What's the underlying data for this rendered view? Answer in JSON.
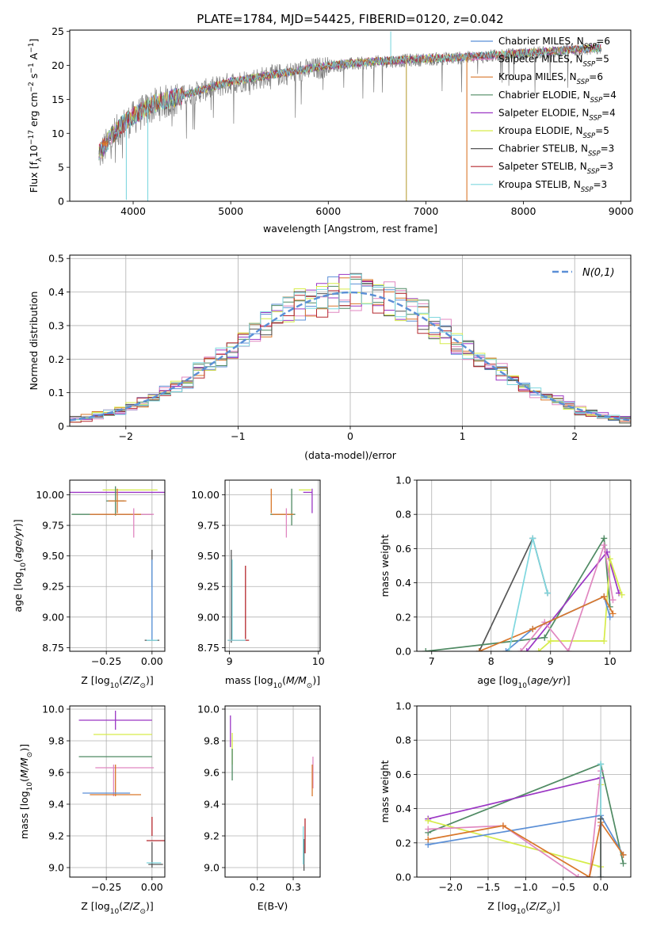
{
  "figure_title": "PLATE=1784, MJD=54425, FIBERID=0120, z=0.042",
  "colors": {
    "chabrier_miles": "#5b8fd6",
    "salpeter_miles": "#e087c0",
    "kroupa_miles": "#d9772b",
    "chabrier_elodie": "#4f8a63",
    "salpeter_elodie": "#9b36c4",
    "kroupa_elodie": "#d6ec4a",
    "chabrier_stelib": "#555555",
    "salpeter_stelib": "#b5282e",
    "kroupa_stelib": "#7fd7df",
    "gauss": "#5b8fd6",
    "data": "#808080"
  },
  "chart_data": [
    {
      "id": "spectrum",
      "type": "line",
      "title": "PLATE=1784, MJD=54425, FIBERID=0120, z=0.042",
      "xlabel": "wavelength [Angstrom, rest frame]",
      "ylabel": "Flux [f_λ 10^-17 erg cm^-2 s^-1 A^-1]",
      "xlim": [
        3350,
        9100
      ],
      "ylim": [
        0,
        25.2
      ],
      "xticks": [
        4000,
        5000,
        6000,
        7000,
        8000,
        9000
      ],
      "yticks": [
        0,
        5,
        10,
        15,
        20,
        25
      ],
      "legend_placement": "top-right",
      "grid": false,
      "continuum": {
        "x": [
          3650,
          3700,
          3800,
          3900,
          4000,
          4200,
          4500,
          5000,
          5500,
          6000,
          6500,
          7000,
          7500,
          8000,
          8500,
          8800
        ],
        "y": [
          7.0,
          8.0,
          10.0,
          11.5,
          12.5,
          14.3,
          15.6,
          17.6,
          18.8,
          20.0,
          20.6,
          21.0,
          21.3,
          21.8,
          22.3,
          22.6
        ]
      },
      "spikes": [
        {
          "x": 3930,
          "y": 0.2
        },
        {
          "x": 4150,
          "y": 0.0
        },
        {
          "x": 6640,
          "y": 25.0
        },
        {
          "x": 6800,
          "y": 0.0
        },
        {
          "x": 7420,
          "y": 0.0
        }
      ],
      "series": [
        {
          "name": "Chabrier MILES, N_SSP=6",
          "label": "Chabrier MILES, N",
          "sub": "SSP",
          "n": "=6",
          "color_key": "chabrier_miles"
        },
        {
          "name": "Salpeter MILES, N_SSP=5",
          "label": "Salpeter MILES, N",
          "sub": "SSP",
          "n": "=5",
          "color_key": "salpeter_miles"
        },
        {
          "name": "Kroupa MILES, N_SSP=6",
          "label": "Kroupa MILES, N",
          "sub": "SSP",
          "n": "=6",
          "color_key": "kroupa_miles"
        },
        {
          "name": "Chabrier ELODIE, N_SSP=4",
          "label": "Chabrier ELODIE, N",
          "sub": "SSP",
          "n": "=4",
          "color_key": "chabrier_elodie"
        },
        {
          "name": "Salpeter ELODIE, N_SSP=4",
          "label": "Salpeter ELODIE, N",
          "sub": "SSP",
          "n": "=4",
          "color_key": "salpeter_elodie"
        },
        {
          "name": "Kroupa ELODIE, N_SSP=5",
          "label": "Kroupa ELODIE, N",
          "sub": "SSP",
          "n": "=5",
          "color_key": "kroupa_elodie"
        },
        {
          "name": "Chabrier STELIB, N_SSP=3",
          "label": "Chabrier STELIB, N",
          "sub": "SSP",
          "n": "=3",
          "color_key": "chabrier_stelib"
        },
        {
          "name": "Salpeter STELIB, N_SSP=3",
          "label": "Salpeter STELIB, N",
          "sub": "SSP",
          "n": "=3",
          "color_key": "salpeter_stelib"
        },
        {
          "name": "Kroupa STELIB, N_SSP=3",
          "label": "Kroupa STELIB, N",
          "sub": "SSP",
          "n": "=3",
          "color_key": "kroupa_stelib"
        }
      ]
    },
    {
      "id": "residuals",
      "type": "line",
      "xlabel": "(data-model)/error",
      "ylabel": "Normed distribution",
      "xlim": [
        -2.5,
        2.5
      ],
      "ylim": [
        0,
        0.51
      ],
      "xticks": [
        -2,
        -1,
        0,
        1,
        2
      ],
      "yticks": [
        0.0,
        0.1,
        0.2,
        0.3,
        0.4,
        0.5
      ],
      "grid": true,
      "legend_placement": "top-right",
      "gauss_label": "N(0,1)",
      "bin_width": 0.1
    },
    {
      "id": "age_vs_Z",
      "type": "scatter",
      "xlabel": "Z [log10(Z/Z⊙)]",
      "ylabel": "age [log10(age/yr)]",
      "xlim": [
        -0.45,
        0.07
      ],
      "ylim": [
        8.72,
        10.12
      ],
      "xticks": [
        -0.25,
        0.0
      ],
      "xticklabels": [
        "−0.25",
        "0.00"
      ],
      "yticks": [
        8.75,
        9.0,
        9.25,
        9.5,
        9.75,
        10.0
      ],
      "yticklabels": [
        "8.75",
        "9.00",
        "9.25",
        "9.50",
        "9.75",
        "10.00"
      ],
      "grid": true,
      "points": [
        {
          "x": -0.2,
          "xe": 0.27,
          "y": 10.02,
          "ye": 0.0,
          "c": "salpeter_elodie"
        },
        {
          "x": -0.12,
          "xe": 0.15,
          "y": 10.04,
          "ye": 0.0,
          "c": "kroupa_elodie"
        },
        {
          "x": -0.2,
          "xe": 0.05,
          "y": 9.95,
          "ye": 0.12,
          "c": "chabrier_elodie"
        },
        {
          "x": -0.19,
          "xe": 0.05,
          "y": 9.95,
          "ye": 0.1,
          "c": "kroupa_miles"
        },
        {
          "x": -0.22,
          "xe": 0.22,
          "y": 9.84,
          "ye": 0.0,
          "c": "chabrier_elodie"
        },
        {
          "x": -0.11,
          "xe": 0.12,
          "y": 9.84,
          "ye": 0.0,
          "c": "salpeter_miles"
        },
        {
          "x": -0.2,
          "xe": 0.14,
          "y": 9.84,
          "ye": 0.0,
          "c": "chabrier_miles"
        },
        {
          "x": -0.2,
          "xe": 0.14,
          "y": 9.84,
          "ye": 0.0,
          "c": "kroupa_miles"
        },
        {
          "x": -0.1,
          "xe": 0.0,
          "y": 9.77,
          "ye": 0.12,
          "c": "salpeter_miles"
        },
        {
          "x": 0.0,
          "xe": 0.0,
          "y": 9.4,
          "ye": 0.15,
          "c": "chabrier_stelib"
        },
        {
          "x": 0.0,
          "xe": 0.0,
          "y": 9.14,
          "ye": 0.32,
          "c": "kroupa_stelib"
        },
        {
          "x": 0.0,
          "xe": 0.0,
          "y": 9.14,
          "ye": 0.33,
          "c": "chabrier_miles"
        },
        {
          "x": 0.0,
          "xe": 0.04,
          "y": 8.81,
          "ye": 0.0,
          "c": "chabrier_stelib"
        },
        {
          "x": 0.0,
          "xe": 0.03,
          "y": 8.81,
          "ye": 0.0,
          "c": "kroupa_stelib"
        }
      ]
    },
    {
      "id": "age_vs_mass",
      "type": "scatter",
      "xlabel": "mass [log10(M/M⊙)]",
      "xlim": [
        8.95,
        10.02
      ],
      "ylim": [
        8.72,
        10.12
      ],
      "xticks": [
        9,
        10
      ],
      "yticks": [
        8.75,
        9.0,
        9.25,
        9.5,
        9.75,
        10.0
      ],
      "yticklabels": [
        "8.75",
        "9.00",
        "9.25",
        "9.50",
        "9.75",
        "10.00"
      ],
      "grid": true,
      "points": [
        {
          "x": 9.85,
          "xe": 0.07,
          "y": 10.04,
          "ye": 0.0,
          "c": "kroupa_elodie"
        },
        {
          "x": 9.93,
          "xe": 0.0,
          "y": 9.95,
          "ye": 0.1,
          "c": "salpeter_elodie"
        },
        {
          "x": 9.88,
          "xe": 0.05,
          "y": 10.02,
          "ye": 0.0,
          "c": "salpeter_elodie"
        },
        {
          "x": 9.7,
          "xe": 0.0,
          "y": 9.9,
          "ye": 0.15,
          "c": "chabrier_elodie"
        },
        {
          "x": 9.47,
          "xe": 0.0,
          "y": 9.95,
          "ye": 0.1,
          "c": "kroupa_miles"
        },
        {
          "x": 9.6,
          "xe": 0.14,
          "y": 9.84,
          "ye": 0.0,
          "c": "chabrier_elodie"
        },
        {
          "x": 9.6,
          "xe": 0.12,
          "y": 9.84,
          "ye": 0.0,
          "c": "kroupa_miles"
        },
        {
          "x": 9.64,
          "xe": 0.0,
          "y": 9.77,
          "ye": 0.12,
          "c": "salpeter_miles"
        },
        {
          "x": 9.02,
          "xe": 0.0,
          "y": 9.17,
          "ye": 0.38,
          "c": "chabrier_stelib"
        },
        {
          "x": 9.03,
          "xe": 0.0,
          "y": 9.14,
          "ye": 0.33,
          "c": "kroupa_stelib"
        },
        {
          "x": 9.18,
          "xe": 0.0,
          "y": 9.12,
          "ye": 0.3,
          "c": "salpeter_stelib"
        },
        {
          "x": 9.1,
          "xe": 0.12,
          "y": 8.81,
          "ye": 0.0,
          "c": "salpeter_stelib"
        },
        {
          "x": 9.08,
          "xe": 0.1,
          "y": 8.81,
          "ye": 0.0,
          "c": "kroupa_stelib"
        }
      ]
    },
    {
      "id": "weight_vs_age",
      "type": "line",
      "xlabel": "age [log10(age/yr)]",
      "ylabel": "mass weight",
      "xlim": [
        6.75,
        10.35
      ],
      "ylim": [
        0,
        1.0
      ],
      "xticks": [
        7,
        8,
        9,
        10
      ],
      "yticks": [
        0.0,
        0.2,
        0.4,
        0.6,
        0.8,
        1.0
      ],
      "yticklabels": [
        "0.0",
        "0.2",
        "0.4",
        "0.6",
        "0.8",
        "1.0"
      ],
      "grid": true,
      "series": [
        {
          "c": "chabrier_stelib",
          "x": [
            7.8,
            8.7,
            8.95
          ],
          "y": [
            0.0,
            0.66,
            0.34
          ]
        },
        {
          "c": "chabrier_elodie",
          "x": [
            6.9,
            8.9,
            9.9,
            10.0
          ],
          "y": [
            0.0,
            0.08,
            0.66,
            0.26
          ]
        },
        {
          "c": "salpeter_elodie",
          "x": [
            8.6,
            9.95,
            10.15
          ],
          "y": [
            0.0,
            0.58,
            0.34
          ]
        },
        {
          "c": "kroupa_elodie",
          "x": [
            8.8,
            9.0,
            9.9,
            10.0,
            10.2
          ],
          "y": [
            0.0,
            0.06,
            0.06,
            0.54,
            0.33
          ]
        },
        {
          "c": "salpeter_miles",
          "x": [
            8.5,
            8.9,
            9.3,
            9.9,
            10.05
          ],
          "y": [
            0.0,
            0.17,
            0.0,
            0.62,
            0.3
          ]
        },
        {
          "c": "chabrier_miles",
          "x": [
            8.25,
            8.7,
            9.9,
            10.0
          ],
          "y": [
            0.0,
            0.13,
            0.32,
            0.2
          ]
        },
        {
          "c": "kroupa_miles",
          "x": [
            7.8,
            8.7,
            9.9,
            10.05
          ],
          "y": [
            0.0,
            0.13,
            0.32,
            0.22
          ]
        },
        {
          "c": "kroupa_stelib",
          "x": [
            8.3,
            8.7,
            8.95
          ],
          "y": [
            0.0,
            0.66,
            0.34
          ]
        }
      ]
    },
    {
      "id": "mass_vs_Z",
      "type": "scatter",
      "xlabel": "Z [log10(Z/Z⊙)]",
      "ylabel": "mass [log10(M/M⊙)]",
      "xlim": [
        -0.45,
        0.07
      ],
      "ylim": [
        8.94,
        10.02
      ],
      "xticks": [
        -0.25,
        0.0
      ],
      "xticklabels": [
        "−0.25",
        "0.00"
      ],
      "yticks": [
        9.0,
        9.2,
        9.4,
        9.6,
        9.8,
        10.0
      ],
      "yticklabels": [
        "9.0",
        "9.2",
        "9.4",
        "9.6",
        "9.8",
        "10.0"
      ],
      "grid": true,
      "points": [
        {
          "x": -0.2,
          "xe": 0.2,
          "y": 9.93,
          "ye": 0.06,
          "c": "salpeter_elodie"
        },
        {
          "x": -0.16,
          "xe": 0.16,
          "y": 9.84,
          "ye": 0.0,
          "c": "kroupa_elodie"
        },
        {
          "x": -0.2,
          "xe": 0.2,
          "y": 9.7,
          "ye": 0.0,
          "c": "chabrier_elodie"
        },
        {
          "x": -0.15,
          "xe": 0.16,
          "y": 9.63,
          "ye": 0.0,
          "c": "salpeter_miles"
        },
        {
          "x": -0.21,
          "xe": 0.0,
          "y": 9.55,
          "ye": 0.1,
          "c": "salpeter_miles"
        },
        {
          "x": -0.2,
          "xe": 0.0,
          "y": 9.55,
          "ye": 0.1,
          "c": "kroupa_miles"
        },
        {
          "x": -0.25,
          "xe": 0.13,
          "y": 9.47,
          "ye": 0.0,
          "c": "chabrier_miles"
        },
        {
          "x": -0.2,
          "xe": 0.14,
          "y": 9.46,
          "ye": 0.0,
          "c": "kroupa_miles"
        },
        {
          "x": 0.0,
          "xe": 0.0,
          "y": 9.26,
          "ye": 0.06,
          "c": "salpeter_stelib"
        },
        {
          "x": 0.02,
          "xe": 0.05,
          "y": 9.17,
          "ye": 0.0,
          "c": "salpeter_stelib"
        },
        {
          "x": 0.0,
          "xe": 0.0,
          "y": 9.08,
          "ye": 0.08,
          "c": "chabrier_stelib"
        },
        {
          "x": 0.02,
          "xe": 0.04,
          "y": 9.02,
          "ye": 0.0,
          "c": "chabrier_stelib"
        },
        {
          "x": 0.01,
          "xe": 0.04,
          "y": 9.03,
          "ye": 0.0,
          "c": "kroupa_stelib"
        }
      ]
    },
    {
      "id": "mass_vs_EBV",
      "type": "scatter",
      "xlabel": "E(B-V)",
      "xlim": [
        0.11,
        0.375
      ],
      "ylim": [
        8.94,
        10.02
      ],
      "xticks": [
        0.2,
        0.3
      ],
      "xticklabels": [
        "0.2",
        "0.3"
      ],
      "yticks": [
        9.0,
        9.2,
        9.4,
        9.6,
        9.8,
        10.0
      ],
      "yticklabels": [
        "9.0",
        "9.2",
        "9.4",
        "9.6",
        "9.8",
        "10.0"
      ],
      "grid": true,
      "points": [
        {
          "x": 0.125,
          "xe": 0.0,
          "y": 9.86,
          "ye": 0.1,
          "c": "salpeter_elodie"
        },
        {
          "x": 0.13,
          "xe": 0.0,
          "y": 9.75,
          "ye": 0.1,
          "c": "kroupa_elodie"
        },
        {
          "x": 0.13,
          "xe": 0.0,
          "y": 9.65,
          "ye": 0.1,
          "c": "chabrier_elodie"
        },
        {
          "x": 0.355,
          "xe": 0.0,
          "y": 9.6,
          "ye": 0.1,
          "c": "salpeter_miles"
        },
        {
          "x": 0.353,
          "xe": 0.0,
          "y": 9.55,
          "ye": 0.1,
          "c": "kroupa_miles"
        },
        {
          "x": 0.333,
          "xe": 0.0,
          "y": 9.2,
          "ye": 0.11,
          "c": "salpeter_stelib"
        },
        {
          "x": 0.33,
          "xe": 0.0,
          "y": 9.08,
          "ye": 0.1,
          "c": "chabrier_stelib"
        },
        {
          "x": 0.328,
          "xe": 0.0,
          "y": 9.14,
          "ye": 0.12,
          "c": "kroupa_stelib"
        }
      ]
    },
    {
      "id": "weight_vs_Z",
      "type": "line",
      "xlabel": "Z [log10(Z/Z⊙)]",
      "ylabel": "mass weight",
      "xlim": [
        -2.45,
        0.4
      ],
      "ylim": [
        0,
        1.0
      ],
      "xticks": [
        -2.0,
        -1.5,
        -1.0,
        -0.5,
        0.0
      ],
      "xticklabels": [
        "−2.0",
        "−1.5",
        "−1.0",
        "−0.5",
        "0.0"
      ],
      "yticks": [
        0.0,
        0.2,
        0.4,
        0.6,
        0.8,
        1.0
      ],
      "yticklabels": [
        "0.0",
        "0.2",
        "0.4",
        "0.6",
        "0.8",
        "1.0"
      ],
      "grid": true,
      "series": [
        {
          "c": "chabrier_elodie",
          "x": [
            -2.3,
            0.0,
            0.3
          ],
          "y": [
            0.26,
            0.66,
            0.08
          ]
        },
        {
          "c": "salpeter_elodie",
          "x": [
            -2.3,
            0.0
          ],
          "y": [
            0.34,
            0.58
          ]
        },
        {
          "c": "kroupa_elodie",
          "x": [
            -2.3,
            0.0,
            0.0
          ],
          "y": [
            0.33,
            0.06,
            0.54
          ]
        },
        {
          "c": "salpeter_miles",
          "x": [
            -2.3,
            -1.3,
            -0.3,
            -0.15,
            0.0,
            0.0
          ],
          "y": [
            0.28,
            0.3,
            0.0,
            0.0,
            0.62,
            0.3
          ]
        },
        {
          "c": "chabrier_miles",
          "x": [
            -2.3,
            0.0,
            0.3
          ],
          "y": [
            0.19,
            0.36,
            0.13
          ]
        },
        {
          "c": "kroupa_miles",
          "x": [
            -2.3,
            -1.3,
            -0.15,
            0.0,
            0.3
          ],
          "y": [
            0.22,
            0.3,
            0.0,
            0.32,
            0.13
          ]
        },
        {
          "c": "kroupa_stelib",
          "x": [
            0.0,
            0.0,
            0.0
          ],
          "y": [
            0.66,
            0.34,
            0.0
          ]
        },
        {
          "c": "chabrier_stelib",
          "x": [
            0.0,
            0.0
          ],
          "y": [
            0.34,
            0.0
          ]
        }
      ]
    }
  ]
}
